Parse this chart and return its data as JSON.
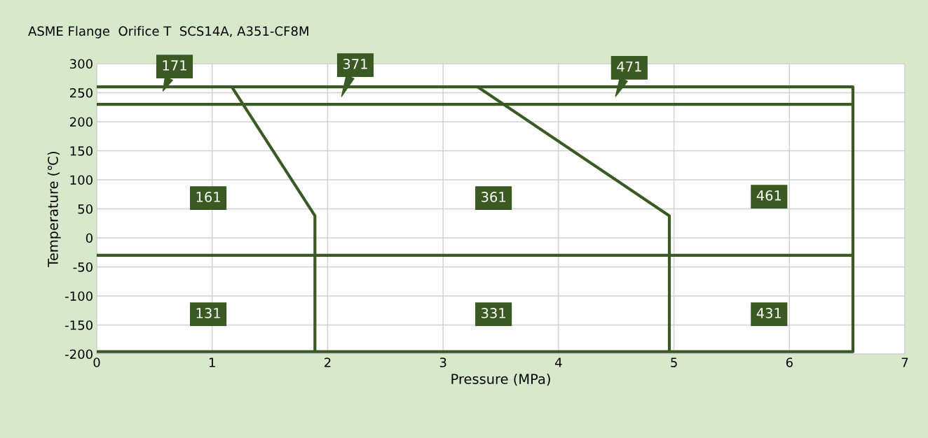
{
  "chart_data": {
    "type": "line",
    "title": "ASME Flange  Orifice T  SCS14A, A351-CF8M",
    "xlabel": "Pressure (MPa)",
    "ylabel": "Temperature (℃)",
    "series": [
      {
        "color": "#3b5a23",
        "x": [
          0,
          6.55,
          6.55,
          0
        ],
        "values": [
          260,
          260,
          -196,
          -196
        ]
      },
      {
        "color": "#3b5a23",
        "x": [
          0,
          6.55
        ],
        "values": [
          230,
          230
        ]
      },
      {
        "color": "#3b5a23",
        "x": [
          0,
          6.55
        ],
        "values": [
          -30,
          -30
        ]
      },
      {
        "color": "#3b5a23",
        "x": [
          1.17,
          1.89,
          1.89
        ],
        "values": [
          260,
          38,
          -196
        ]
      },
      {
        "color": "#3b5a23",
        "x": [
          3.3,
          4.96,
          4.96
        ],
        "values": [
          260,
          38,
          -196
        ]
      }
    ],
    "annotations": [
      "171",
      "371",
      "471",
      "161",
      "361",
      "461",
      "131",
      "331",
      "431"
    ],
    "xlim": [
      0,
      7
    ],
    "xticks": [
      0,
      1,
      2,
      3,
      4,
      5,
      6,
      7
    ],
    "ylim": [
      -200,
      300
    ],
    "yticks": [
      -200,
      -150,
      -100,
      -50,
      0,
      50,
      100,
      150,
      200,
      250,
      300
    ],
    "grid": true,
    "legend": false,
    "marker": "none",
    "line_style": "solid"
  }
}
